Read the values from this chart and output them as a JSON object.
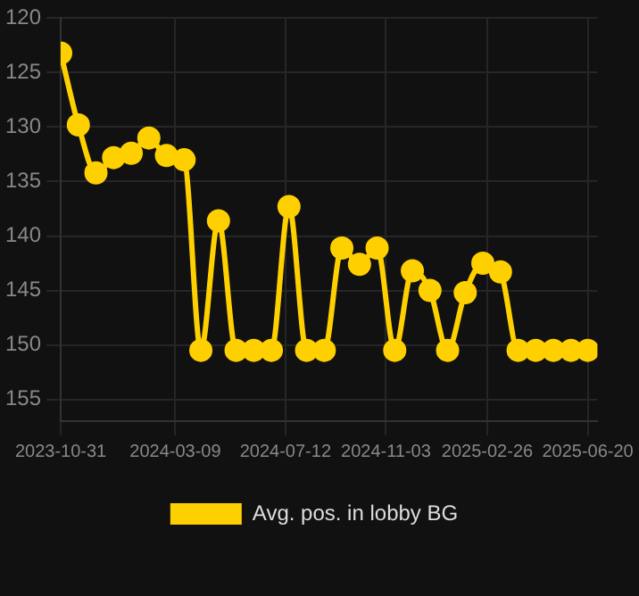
{
  "chart_data": {
    "type": "line",
    "x": [
      "2023-10-31",
      "2023-11-20",
      "2023-12-10",
      "2023-12-30",
      "2024-01-19",
      "2024-02-08",
      "2024-02-28",
      "2024-03-19",
      "2024-04-07",
      "2024-04-27",
      "2024-05-17",
      "2024-06-06",
      "2024-06-26",
      "2024-07-16",
      "2024-08-05",
      "2024-08-25",
      "2024-09-14",
      "2024-10-04",
      "2024-10-24",
      "2024-11-13",
      "2024-12-03",
      "2024-12-23",
      "2025-01-12",
      "2025-02-01",
      "2025-02-21",
      "2025-03-13",
      "2025-04-02",
      "2025-04-22",
      "2025-05-12",
      "2025-06-01",
      "2025-06-20"
    ],
    "series": [
      {
        "name": "Avg. pos. in lobby BG",
        "color": "#ffd000",
        "values": [
          123.2,
          129.8,
          134.2,
          132.8,
          132.4,
          131.0,
          132.6,
          133.0,
          150.5,
          138.6,
          150.5,
          150.5,
          150.5,
          137.3,
          150.5,
          150.5,
          141.1,
          142.6,
          141.1,
          150.5,
          143.2,
          145.0,
          150.5,
          145.2,
          142.5,
          143.3,
          150.5,
          150.5,
          150.5,
          150.5,
          150.5
        ]
      }
    ],
    "ylim": [
      157,
      120
    ],
    "yticks": [
      120,
      125,
      130,
      135,
      140,
      145,
      150,
      155
    ],
    "xlim": [
      "2023-10-31",
      "2025-07-01"
    ],
    "xticks": [
      "2023-10-31",
      "2024-03-09",
      "2024-07-12",
      "2024-11-03",
      "2025-02-26",
      "2025-06-20"
    ],
    "grid": true,
    "legend": "bottom",
    "marker": "circle",
    "line_style": "solid"
  }
}
